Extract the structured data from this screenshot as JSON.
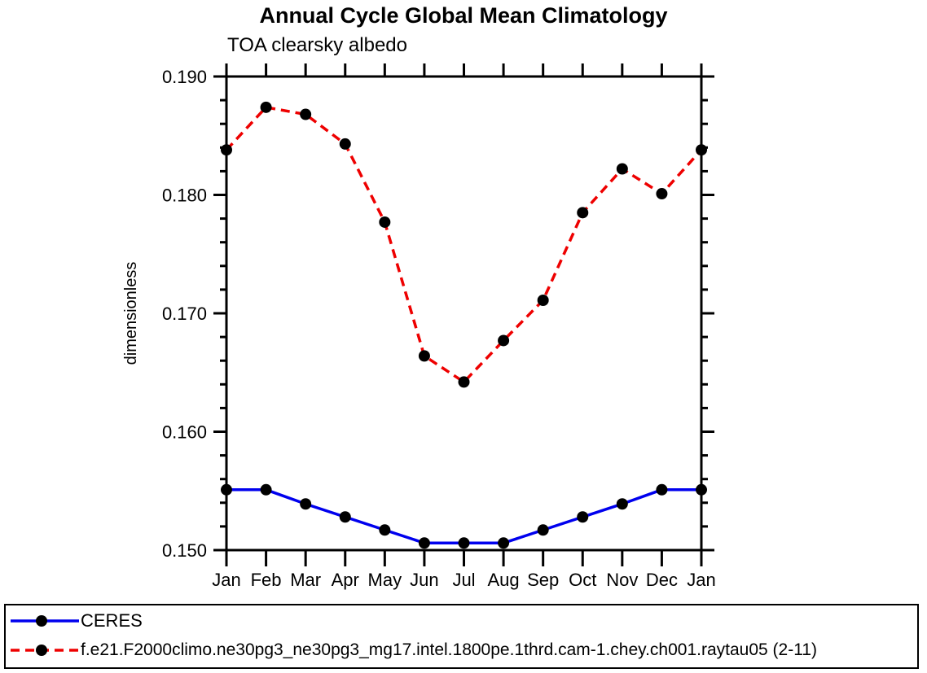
{
  "chart_data": {
    "type": "line",
    "title": "Annual Cycle Global Mean Climatology",
    "subtitle": "TOA clearsky albedo",
    "ylabel": "dimensionless",
    "ylim": [
      0.15,
      0.19
    ],
    "ytick_major_labels": [
      "0.150",
      "0.160",
      "0.170",
      "0.180",
      "0.190"
    ],
    "ytick_major_values": [
      0.15,
      0.16,
      0.17,
      0.18,
      0.19
    ],
    "ytick_minor_step": 0.002,
    "grid": false,
    "legend_position": "bottom-box",
    "categories": [
      "Jan",
      "Feb",
      "Mar",
      "Apr",
      "May",
      "Jun",
      "Jul",
      "Aug",
      "Sep",
      "Oct",
      "Nov",
      "Dec",
      "Jan"
    ],
    "series": [
      {
        "name": "CERES",
        "color": "#0000ee",
        "line_style": "solid",
        "marker": "circle",
        "marker_color": "#000000",
        "values": [
          0.1551,
          0.1551,
          0.1539,
          0.1528,
          0.1517,
          0.1506,
          0.1506,
          0.1506,
          0.1517,
          0.1528,
          0.1539,
          0.1551,
          0.1551
        ]
      },
      {
        "name": "f.e21.F2000climo.ne30pg3_ne30pg3_mg17.intel.1800pe.1thrd.cam-1.chey.ch001.raytau05 (2-11)",
        "color": "#ee0000",
        "line_style": "dashed",
        "marker": "circle",
        "marker_color": "#000000",
        "values": [
          0.1838,
          0.1874,
          0.1868,
          0.1843,
          0.1777,
          0.1664,
          0.1642,
          0.1677,
          0.1711,
          0.1785,
          0.1822,
          0.1801,
          0.1838
        ]
      }
    ],
    "frame_color": "#000000"
  }
}
